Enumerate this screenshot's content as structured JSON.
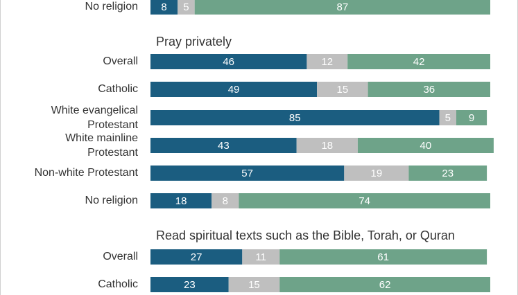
{
  "chart_data": {
    "type": "bar",
    "stacked": true,
    "orientation": "horizontal",
    "colors": [
      "#1b5d80",
      "#bfbfbf",
      "#6ea389"
    ],
    "legend": [],
    "groups": [
      {
        "title": "",
        "rows": [
          {
            "label": "No religion",
            "values": [
              8,
              5,
              87
            ]
          }
        ]
      },
      {
        "title": "Pray privately",
        "rows": [
          {
            "label": "Overall",
            "values": [
              46,
              12,
              42
            ]
          },
          {
            "label": "Catholic",
            "values": [
              49,
              15,
              36
            ]
          },
          {
            "label": "White evangelical\nProtestant",
            "values": [
              85,
              5,
              9
            ]
          },
          {
            "label": "White mainline\nProtestant",
            "values": [
              43,
              18,
              40
            ]
          },
          {
            "label": "Non-white Protestant",
            "values": [
              57,
              19,
              23
            ]
          },
          {
            "label": "No religion",
            "values": [
              18,
              8,
              74
            ]
          }
        ]
      },
      {
        "title": "Read spiritual texts such as the Bible, Torah, or Quran",
        "rows": [
          {
            "label": "Overall",
            "values": [
              27,
              11,
              61
            ]
          },
          {
            "label": "Catholic",
            "values": [
              23,
              15,
              62
            ]
          }
        ]
      }
    ]
  }
}
